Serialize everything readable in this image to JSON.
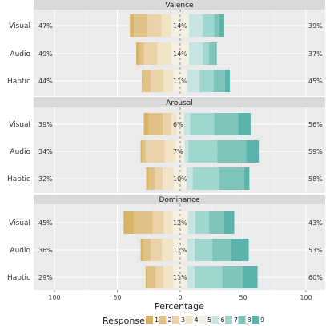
{
  "chart_data": {
    "type": "bar",
    "subtype": "diverging-stacked-likert",
    "facets": [
      {
        "title": "Valence",
        "rows": [
          {
            "label": "Visual",
            "left_pct": "47%",
            "neutral_pct": "14%",
            "right_pct": "39%",
            "values": [
              3,
              11,
              11,
              8,
              14,
              11,
              9,
              4,
              4
            ]
          },
          {
            "label": "Audio",
            "left_pct": "49%",
            "neutral_pct": "14%",
            "right_pct": "37%",
            "values": [
              3,
              3,
              11,
              11,
              14,
              11,
              5,
              5,
              1
            ]
          },
          {
            "label": "Haptic",
            "left_pct": "44%",
            "neutral_pct": "11%",
            "right_pct": "45%",
            "values": [
              1,
              6,
              10,
              8,
              11,
              10,
              11,
              9,
              4
            ]
          }
        ]
      },
      {
        "title": "Arousal",
        "rows": [
          {
            "label": "Visual",
            "left_pct": "39%",
            "neutral_pct": "6%",
            "right_pct": "56%",
            "values": [
              4,
              11,
              7,
              4,
              6,
              5,
              19,
              19,
              10
            ]
          },
          {
            "label": "Audio",
            "left_pct": "34%",
            "neutral_pct": "7%",
            "right_pct": "59%",
            "values": [
              1,
              3,
              15,
              9,
              7,
              3,
              23,
              23,
              10
            ]
          },
          {
            "label": "Haptic",
            "left_pct": "32%",
            "neutral_pct": "10%",
            "right_pct": "58%",
            "values": [
              2,
              5,
              6,
              9,
              10,
              5,
              21,
              20,
              4
            ]
          }
        ]
      },
      {
        "title": "Dominance",
        "rows": [
          {
            "label": "Visual",
            "left_pct": "45%",
            "neutral_pct": "12%",
            "right_pct": "43%",
            "values": [
              8,
              15,
              9,
              7,
              12,
              6,
              11,
              12,
              8
            ]
          },
          {
            "label": "Audio",
            "left_pct": "36%",
            "neutral_pct": "11%",
            "right_pct": "53%",
            "values": [
              2,
              6,
              9,
              9,
              11,
              6,
              14,
              15,
              14
            ]
          },
          {
            "label": "Haptic",
            "left_pct": "29%",
            "neutral_pct": "11%",
            "right_pct": "60%",
            "values": [
              1,
              7,
              6,
              8,
              11,
              6,
              22,
              16,
              12
            ]
          }
        ]
      }
    ],
    "xlabel": "Percentage",
    "ylabel": "",
    "xticks": [
      "100",
      "50",
      "0",
      "50",
      "100"
    ],
    "xlim": [
      -100,
      100
    ],
    "legend": {
      "title": "Response",
      "position": "bottom",
      "labels": [
        "1",
        "2",
        "3",
        "4",
        "5",
        "6",
        "7",
        "8",
        "9"
      ],
      "colors": [
        "#d8b365",
        "#e1c286",
        "#ead3a8",
        "#f2e4c7",
        "#f5f0e4",
        "#c7e5e0",
        "#9fd6cd",
        "#7ec4ba",
        "#5ab4ac"
      ]
    },
    "background": "#ebebeb",
    "strip_background": "#d9d9d9",
    "grid": true
  }
}
